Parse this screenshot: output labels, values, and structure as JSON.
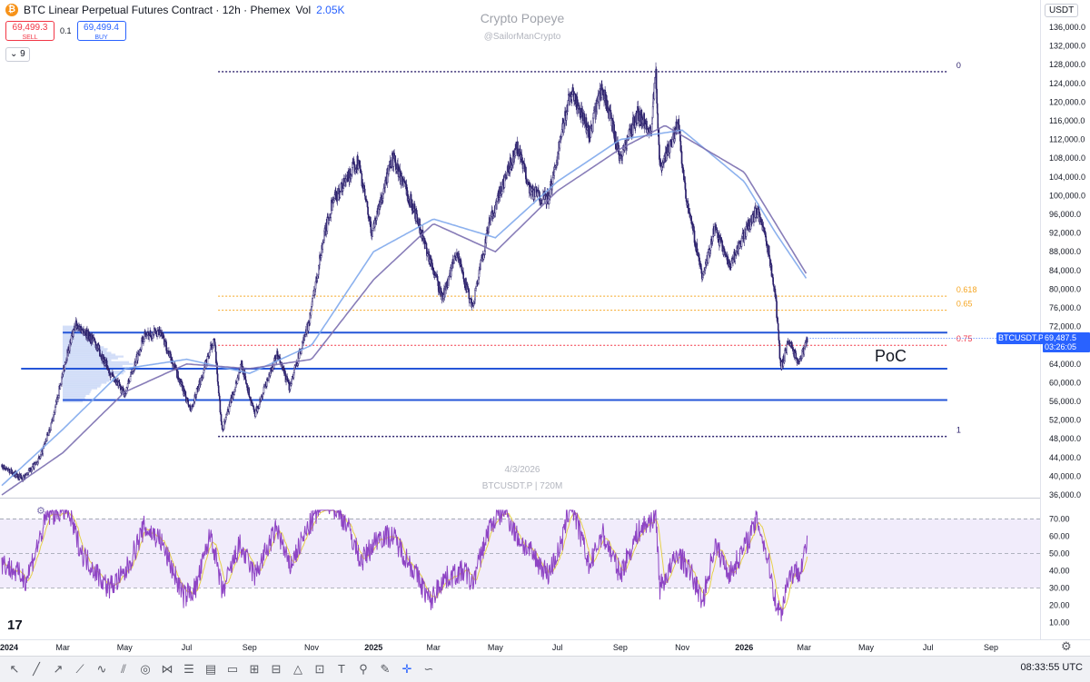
{
  "header": {
    "title": "BTC Linear Perpetual Futures Contract · 12h · Phemex",
    "vol_label": "Vol",
    "vol_value": "2.05K",
    "sell_price": "69,499.3",
    "sell_label": "SELL",
    "spread": "0.1",
    "buy_price": "69,499.4",
    "buy_label": "BUY",
    "indicator_count": "9"
  },
  "watermark": {
    "title": "Crypto Popeye",
    "subtitle": "@SailorManCrypto",
    "date": "4/3/2026",
    "symbol_line": "BTCUSDT.P | 720M"
  },
  "currency": "USDT",
  "price_tag": {
    "symbol": "BTCUSDT.P",
    "price": "69,487.5",
    "countdown": "03:26:05"
  },
  "poc_label": "PoC",
  "clock": "08:33:55 UTC",
  "colors": {
    "candle": "#2a1f6b",
    "ma_blue": "#7fa8ec",
    "ma_purple": "#7b6fb0",
    "level_blue": "#2556d8",
    "fib_orange": "#f5a623",
    "fib_red": "#f23645",
    "rsi_line": "#8e44c4",
    "rsi_ma": "#e6d04a",
    "rsi_band": "#f1ecfb"
  },
  "toolbar_icons": [
    "cursor-icon",
    "trendline-icon",
    "ray-icon",
    "path-icon",
    "zigzag-icon",
    "channel-icon",
    "circle-icon",
    "pattern-icon",
    "fib-icon",
    "gann-icon",
    "rectangle-icon",
    "long-icon",
    "short-icon",
    "triangle-icon",
    "measure-icon",
    "text-icon",
    "pin-icon",
    "brush-icon",
    "crosshair-icon",
    "curve-icon"
  ],
  "chart_data": [
    {
      "type": "line",
      "description": "BTCUSDT.P 12h candlestick (close-path approximation) with moving averages, horizontal levels and Fibonacci retracement",
      "y_axis": {
        "ticks": [
          36000,
          40000,
          44000,
          48000,
          52000,
          56000,
          60000,
          64000,
          68000,
          72000,
          76000,
          80000,
          84000,
          88000,
          92000,
          96000,
          100000,
          104000,
          108000,
          112000,
          116000,
          120000,
          124000,
          128000,
          132000,
          136000
        ],
        "tick_labels": [
          "36,000.0",
          "40,000.0",
          "44,000.0",
          "48,000.0",
          "52,000.0",
          "56,000.0",
          "60,000.0",
          "64,000.0",
          "68,000.0",
          "72,000.0",
          "76,000.0",
          "80,000.0",
          "84,000.0",
          "88,000.0",
          "92,000.0",
          "96,000.0",
          "100,000.0",
          "104,000.0",
          "108,000.0",
          "112,000.0",
          "116,000.0",
          "120,000.0",
          "124,000.0",
          "128,000.0",
          "132,000.0",
          "136,000.0"
        ],
        "range": [
          36000,
          136000
        ]
      },
      "x_axis": {
        "labels": [
          "2024",
          "Mar",
          "May",
          "Jul",
          "Sep",
          "Nov",
          "2025",
          "Mar",
          "May",
          "Jul",
          "Sep",
          "Nov",
          "2026",
          "Mar",
          "May",
          "Jul",
          "Sep"
        ],
        "label_dates": [
          "2024-01-01",
          "2024-03-01",
          "2024-05-01",
          "2024-07-01",
          "2024-09-01",
          "2024-11-01",
          "2025-01-01",
          "2025-03-01",
          "2025-05-01",
          "2025-07-01",
          "2025-09-01",
          "2025-11-01",
          "2026-01-01",
          "2026-03-01",
          "2026-05-01",
          "2026-07-01",
          "2026-09-01"
        ],
        "bold_labels": [
          "2024",
          "2025",
          "2026"
        ]
      },
      "price_keypoints": [
        [
          "2024-01-01",
          42000
        ],
        [
          "2024-01-22",
          39500
        ],
        [
          "2024-02-08",
          44000
        ],
        [
          "2024-02-20",
          52000
        ],
        [
          "2024-03-05",
          66000
        ],
        [
          "2024-03-14",
          72500
        ],
        [
          "2024-04-01",
          69000
        ],
        [
          "2024-04-17",
          62000
        ],
        [
          "2024-05-01",
          57500
        ],
        [
          "2024-05-20",
          70000
        ],
        [
          "2024-06-05",
          71000
        ],
        [
          "2024-06-24",
          60500
        ],
        [
          "2024-07-05",
          54000
        ],
        [
          "2024-07-28",
          69500
        ],
        [
          "2024-08-05",
          49500
        ],
        [
          "2024-08-24",
          64000
        ],
        [
          "2024-09-06",
          53000
        ],
        [
          "2024-09-28",
          66000
        ],
        [
          "2024-10-10",
          59000
        ],
        [
          "2024-10-29",
          72500
        ],
        [
          "2024-11-12",
          90000
        ],
        [
          "2024-11-22",
          99000
        ],
        [
          "2024-12-05",
          103000
        ],
        [
          "2024-12-17",
          107500
        ],
        [
          "2024-12-30",
          92000
        ],
        [
          "2025-01-20",
          108000
        ],
        [
          "2025-02-10",
          97000
        ],
        [
          "2025-03-01",
          84000
        ],
        [
          "2025-03-10",
          78000
        ],
        [
          "2025-03-24",
          88000
        ],
        [
          "2025-04-08",
          76000
        ],
        [
          "2025-04-25",
          94000
        ],
        [
          "2025-05-22",
          110500
        ],
        [
          "2025-06-05",
          101000
        ],
        [
          "2025-06-22",
          99000
        ],
        [
          "2025-07-14",
          122500
        ],
        [
          "2025-08-02",
          113000
        ],
        [
          "2025-08-14",
          123500
        ],
        [
          "2025-09-01",
          108000
        ],
        [
          "2025-09-18",
          117500
        ],
        [
          "2025-10-01",
          114000
        ],
        [
          "2025-10-06",
          126000
        ],
        [
          "2025-10-10",
          105000
        ],
        [
          "2025-10-28",
          115500
        ],
        [
          "2025-11-04",
          101000
        ],
        [
          "2025-11-21",
          82000
        ],
        [
          "2025-12-03",
          93000
        ],
        [
          "2025-12-18",
          85000
        ],
        [
          "2026-01-05",
          93500
        ],
        [
          "2026-01-14",
          97000
        ],
        [
          "2026-01-25",
          88000
        ],
        [
          "2026-02-01",
          78000
        ],
        [
          "2026-02-06",
          63000
        ],
        [
          "2026-02-14",
          69000
        ],
        [
          "2026-02-24",
          64000
        ],
        [
          "2026-03-04",
          69487.5
        ]
      ],
      "moving_averages": [
        {
          "color_key": "ma_blue",
          "keypoints": [
            [
              "2024-01-01",
              38000
            ],
            [
              "2024-03-01",
              50000
            ],
            [
              "2024-05-01",
              63000
            ],
            [
              "2024-07-01",
              65000
            ],
            [
              "2024-09-01",
              62000
            ],
            [
              "2024-11-01",
              68000
            ],
            [
              "2025-01-01",
              88000
            ],
            [
              "2025-03-01",
              95000
            ],
            [
              "2025-05-01",
              91000
            ],
            [
              "2025-07-01",
              103000
            ],
            [
              "2025-09-01",
              112000
            ],
            [
              "2025-11-01",
              114000
            ],
            [
              "2026-01-01",
              103000
            ],
            [
              "2026-02-01",
              92000
            ],
            [
              "2026-03-04",
              82000
            ]
          ]
        },
        {
          "color_key": "ma_purple",
          "keypoints": [
            [
              "2024-01-01",
              36000
            ],
            [
              "2024-03-01",
              45000
            ],
            [
              "2024-05-01",
              58000
            ],
            [
              "2024-07-01",
              64000
            ],
            [
              "2024-09-01",
              63000
            ],
            [
              "2024-11-01",
              65000
            ],
            [
              "2025-01-01",
              82000
            ],
            [
              "2025-03-01",
              94000
            ],
            [
              "2025-05-01",
              88000
            ],
            [
              "2025-07-01",
              101000
            ],
            [
              "2025-09-01",
              110000
            ],
            [
              "2025-10-15",
              115000
            ],
            [
              "2026-01-01",
              105000
            ],
            [
              "2026-02-01",
              94000
            ],
            [
              "2026-03-04",
              83000
            ]
          ]
        }
      ],
      "horizontal_levels": [
        {
          "value": 70700,
          "color_key": "level_blue",
          "style": "solid",
          "from": "2024-03-01",
          "to": "2026-07-20"
        },
        {
          "value": 63000,
          "color_key": "level_blue",
          "style": "solid",
          "from": "2024-01-20",
          "to": "2026-07-20"
        },
        {
          "value": 56300,
          "color_key": "level_blue",
          "style": "solid",
          "from": "2024-03-01",
          "to": "2026-07-20"
        }
      ],
      "fibonacci": {
        "from": "2024-08-01",
        "to": "2026-07-20",
        "levels": [
          {
            "ratio": "0",
            "value": 126500,
            "color_key": "candle"
          },
          {
            "ratio": "0.618",
            "value": 78500,
            "color_key": "fib_orange"
          },
          {
            "ratio": "0.65",
            "value": 75500,
            "color_key": "fib_orange"
          },
          {
            "ratio": "0.75",
            "value": 68000,
            "color_key": "fib_red"
          },
          {
            "ratio": "1",
            "value": 48500,
            "color_key": "candle"
          }
        ]
      },
      "current_price": 69487.5
    },
    {
      "type": "line",
      "description": "RSI oscillator panel",
      "y_axis": {
        "ticks": [
          10,
          20,
          30,
          40,
          50,
          60,
          70
        ],
        "tick_labels": [
          "10.00",
          "20.00",
          "30.00",
          "40.00",
          "50.00",
          "60.00",
          "70.00"
        ],
        "range": [
          4,
          76
        ]
      },
      "bands": [
        30,
        50,
        70
      ],
      "rsi_keypoints": [
        [
          "2024-01-01",
          45
        ],
        [
          "2024-01-25",
          35
        ],
        [
          "2024-02-15",
          72
        ],
        [
          "2024-03-05",
          76
        ],
        [
          "2024-03-20",
          50
        ],
        [
          "2024-04-15",
          30
        ],
        [
          "2024-05-01",
          38
        ],
        [
          "2024-05-20",
          65
        ],
        [
          "2024-06-05",
          58
        ],
        [
          "2024-06-28",
          25
        ],
        [
          "2024-07-10",
          30
        ],
        [
          "2024-07-25",
          62
        ],
        [
          "2024-08-05",
          27
        ],
        [
          "2024-08-22",
          55
        ],
        [
          "2024-09-06",
          37
        ],
        [
          "2024-09-28",
          65
        ],
        [
          "2024-10-10",
          42
        ],
        [
          "2024-10-29",
          65
        ],
        [
          "2024-11-15",
          82
        ],
        [
          "2024-12-05",
          68
        ],
        [
          "2024-12-20",
          45
        ],
        [
          "2025-01-06",
          60
        ],
        [
          "2025-01-20",
          60
        ],
        [
          "2025-02-10",
          40
        ],
        [
          "2025-02-26",
          22
        ],
        [
          "2025-03-10",
          35
        ],
        [
          "2025-04-01",
          40
        ],
        [
          "2025-04-08",
          32
        ],
        [
          "2025-04-25",
          65
        ],
        [
          "2025-05-10",
          76
        ],
        [
          "2025-05-22",
          60
        ],
        [
          "2025-06-22",
          38
        ],
        [
          "2025-07-05",
          55
        ],
        [
          "2025-07-14",
          80
        ],
        [
          "2025-08-02",
          42
        ],
        [
          "2025-08-14",
          62
        ],
        [
          "2025-09-01",
          38
        ],
        [
          "2025-09-18",
          62
        ],
        [
          "2025-10-06",
          72
        ],
        [
          "2025-10-10",
          30
        ],
        [
          "2025-10-28",
          50
        ],
        [
          "2025-11-10",
          38
        ],
        [
          "2025-11-21",
          22
        ],
        [
          "2025-12-03",
          55
        ],
        [
          "2025-12-18",
          38
        ],
        [
          "2026-01-05",
          58
        ],
        [
          "2026-01-14",
          70
        ],
        [
          "2026-01-25",
          45
        ],
        [
          "2026-02-01",
          22
        ],
        [
          "2026-02-06",
          15
        ],
        [
          "2026-02-14",
          38
        ],
        [
          "2026-02-24",
          40
        ],
        [
          "2026-03-04",
          55
        ]
      ]
    }
  ]
}
